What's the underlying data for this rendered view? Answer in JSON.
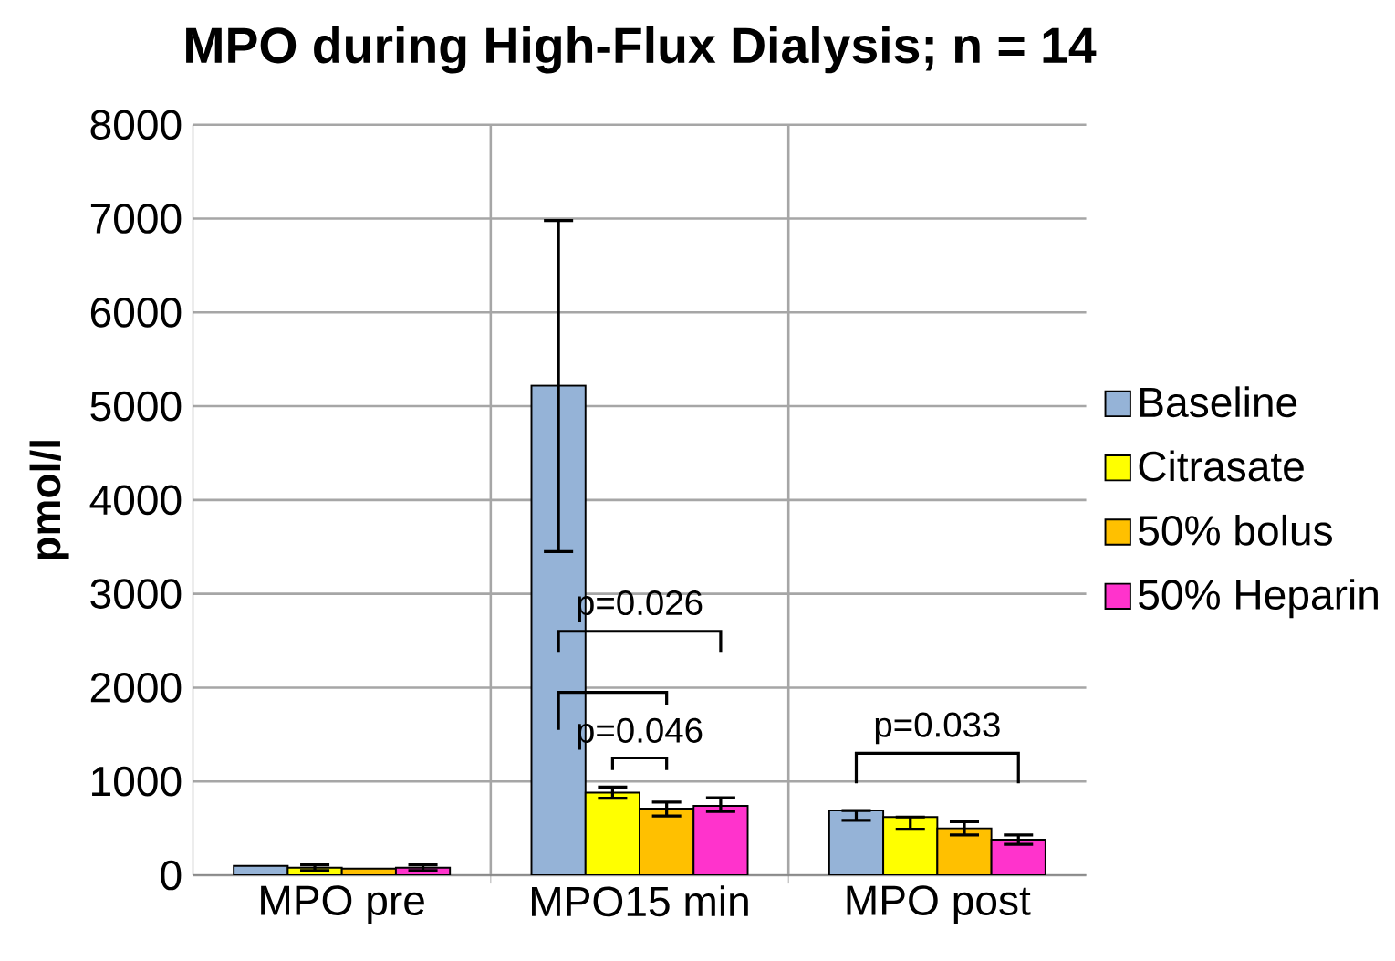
{
  "chart_data": {
    "type": "bar",
    "title": "MPO during High-Flux Dialysis; n = 14",
    "ylabel": "pmol/l",
    "categories": [
      "MPO pre",
      "MPO15 min",
      "MPO   post"
    ],
    "series": [
      {
        "name": "Baseline",
        "color": "#95b3d7",
        "values": [
          100,
          5220,
          690
        ],
        "errors": [
          null,
          [
            3450,
            6980
          ],
          [
            585,
            690
          ]
        ]
      },
      {
        "name": "Citrasate",
        "color": "#ffff00",
        "values": [
          80,
          880,
          620
        ],
        "errors": [
          [
            50,
            110
          ],
          [
            820,
            940
          ],
          [
            490,
            620
          ]
        ]
      },
      {
        "name": "50% bolus",
        "color": "#ffc000",
        "values": [
          70,
          710,
          500
        ],
        "errors": [
          null,
          [
            630,
            780
          ],
          [
            430,
            570
          ]
        ]
      },
      {
        "name": "50% Heparin",
        "color": "#ff33cc",
        "values": [
          80,
          740,
          380
        ],
        "errors": [
          [
            50,
            110
          ],
          [
            680,
            825
          ],
          [
            330,
            430
          ]
        ]
      }
    ],
    "ylim": [
      0,
      8000
    ],
    "yticks": [
      0,
      1000,
      2000,
      3000,
      4000,
      5000,
      6000,
      7000,
      8000
    ],
    "grid": true,
    "legend": "right",
    "annotations": [
      "p=0.026",
      "p=0.046",
      "p=0.033"
    ]
  }
}
